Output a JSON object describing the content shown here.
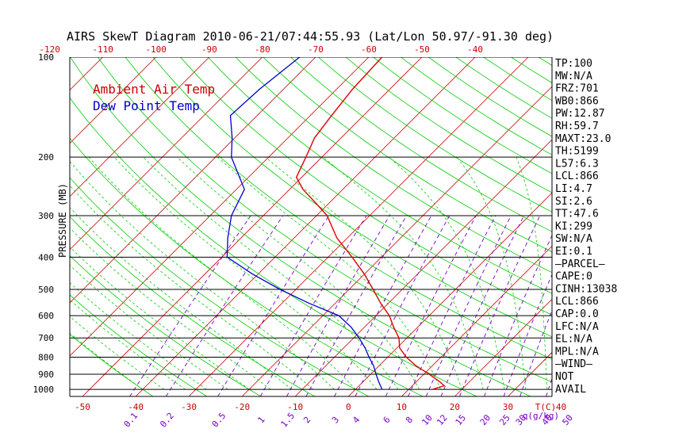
{
  "chart_data": {
    "type": "skewt",
    "title": "AIRS SkewT Diagram 2010-06-21/07:44:55.93 (Lat/Lon 50.97/-91.30 deg)",
    "ylabel": "PRESSURE (MB)",
    "top_axis_ticks": [
      "-120",
      "-110",
      "-100",
      "-90",
      "-80",
      "-70",
      "-60",
      "-50",
      "-40"
    ],
    "bottom_axis_ticks": [
      "-50",
      "-40",
      "-30",
      "-20",
      "-10",
      "0",
      "10",
      "20",
      "30",
      "40"
    ],
    "bottom_axis_unit": "T(C)",
    "mixing_ratio_labels": [
      "0.1",
      "0.2",
      "0.5",
      "1",
      "1.5",
      "2",
      "3",
      "4",
      "6",
      "8",
      "10",
      "12",
      "15",
      "20",
      "25",
      "30",
      "40",
      "50"
    ],
    "mixing_ratio_unit": "q(g/kg)",
    "pressure_levels": [
      100,
      200,
      300,
      400,
      500,
      600,
      700,
      800,
      900,
      1000
    ],
    "legend": [
      "Ambient Air Temp",
      "Dew Point Temp"
    ],
    "colors": {
      "temperature": "#dd0000",
      "dewpoint": "#0000cc",
      "isotherm": "#cc0000",
      "dry_adiabat": "#00cc00",
      "moist_adiabat": "#00cc00",
      "mixing_ratio": "#7a00c8",
      "isobar": "#000000"
    },
    "series": [
      {
        "name": "Ambient Air Temp",
        "points": [
          {
            "p": 1000,
            "t": 14.5
          },
          {
            "p": 975,
            "t": 16.0
          },
          {
            "p": 950,
            "t": 14.5
          },
          {
            "p": 900,
            "t": 11.0
          },
          {
            "p": 850,
            "t": 7.0
          },
          {
            "p": 800,
            "t": 3.5
          },
          {
            "p": 750,
            "t": 0.5
          },
          {
            "p": 700,
            "t": -1.5
          },
          {
            "p": 650,
            "t": -4.5
          },
          {
            "p": 600,
            "t": -7.5
          },
          {
            "p": 550,
            "t": -11.5
          },
          {
            "p": 500,
            "t": -15.5
          },
          {
            "p": 450,
            "t": -20.0
          },
          {
            "p": 400,
            "t": -25.5
          },
          {
            "p": 350,
            "t": -32.0
          },
          {
            "p": 300,
            "t": -38.0
          },
          {
            "p": 275,
            "t": -42.5
          },
          {
            "p": 250,
            "t": -47.5
          },
          {
            "p": 230,
            "t": -51.0
          },
          {
            "p": 200,
            "t": -53.0
          },
          {
            "p": 175,
            "t": -55.0
          },
          {
            "p": 150,
            "t": -56.0
          },
          {
            "p": 125,
            "t": -57.0
          },
          {
            "p": 100,
            "t": -57.5
          }
        ]
      },
      {
        "name": "Dew Point Temp",
        "points": [
          {
            "p": 1000,
            "t": 5.0
          },
          {
            "p": 950,
            "t": 3.0
          },
          {
            "p": 900,
            "t": 1.0
          },
          {
            "p": 850,
            "t": -1.0
          },
          {
            "p": 800,
            "t": -3.5
          },
          {
            "p": 750,
            "t": -6.0
          },
          {
            "p": 700,
            "t": -9.0
          },
          {
            "p": 650,
            "t": -12.5
          },
          {
            "p": 600,
            "t": -17.0
          },
          {
            "p": 550,
            "t": -25.0
          },
          {
            "p": 500,
            "t": -33.0
          },
          {
            "p": 450,
            "t": -41.0
          },
          {
            "p": 400,
            "t": -49.0
          },
          {
            "p": 350,
            "t": -52.5
          },
          {
            "p": 300,
            "t": -56.0
          },
          {
            "p": 250,
            "t": -58.5
          },
          {
            "p": 200,
            "t": -67.0
          },
          {
            "p": 175,
            "t": -70.5
          },
          {
            "p": 150,
            "t": -75.0
          },
          {
            "p": 125,
            "t": -74.5
          },
          {
            "p": 100,
            "t": -73.0
          }
        ]
      }
    ],
    "indices": [
      "TP:100",
      "MW:N/A",
      "FRZ:701",
      "WB0:866",
      "PW:12.87",
      "RH:59.7",
      "MAXT:23.0",
      "TH:5199",
      "L57:6.3",
      "LCL:866",
      "LI:4.7",
      "SI:2.6",
      "TT:47.6",
      "KI:299",
      "SW:N/A",
      "EI:0.1",
      "–PARCEL–",
      "CAPE:0",
      "CINH:13038",
      "LCL:866",
      "CAP:0.0",
      "LFC:N/A",
      "EL:N/A",
      "MPL:N/A",
      "–WIND–",
      "NOT",
      "AVAIL"
    ]
  }
}
